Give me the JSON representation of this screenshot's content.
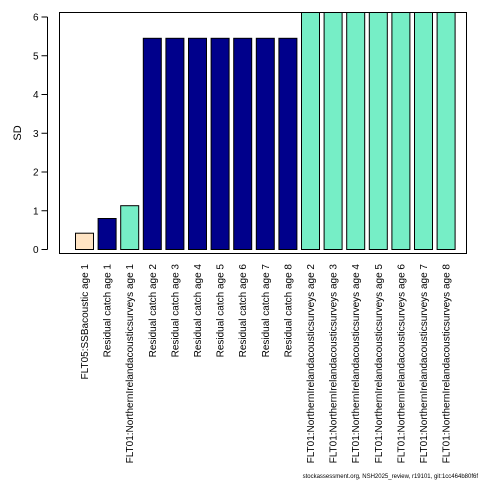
{
  "chart_data": {
    "type": "bar",
    "title": "",
    "xlabel": "",
    "ylabel": "SD",
    "ylim": [
      0,
      6.2
    ],
    "yticks": [
      0,
      1,
      2,
      3,
      4,
      5,
      6
    ],
    "grid": false,
    "categories": [
      "FLT05:SSBacoustic age 1",
      "Residual catch age 1",
      "FLT01:NorthernIrelandacousticsurveys age 1",
      "Residual catch age 2",
      "Residual catch age 3",
      "Residual catch age 4",
      "Residual catch age 5",
      "Residual catch age 6",
      "Residual catch age 7",
      "Residual catch age 8",
      "FLT01:NorthernIrelandacousticsurveys age 2",
      "FLT01:NorthernIrelandacousticsurveys age 3",
      "FLT01:NorthernIrelandacousticsurveys age 4",
      "FLT01:NorthernIrelandacousticsurveys age 5",
      "FLT01:NorthernIrelandacousticsurveys age 6",
      "FLT01:NorthernIrelandacousticsurveys age 7",
      "FLT01:NorthernIrelandacousticsurveys age 8"
    ],
    "values": [
      0.42,
      0.8,
      1.13,
      5.45,
      5.45,
      5.45,
      5.45,
      5.45,
      5.45,
      5.45,
      6.22,
      6.22,
      6.22,
      6.22,
      6.22,
      6.22,
      6.22
    ],
    "bar_colors": [
      "#FFE4C4",
      "#00008B",
      "#76EEC6",
      "#00008B",
      "#00008B",
      "#00008B",
      "#00008B",
      "#00008B",
      "#00008B",
      "#00008B",
      "#76EEC6",
      "#76EEC6",
      "#76EEC6",
      "#76EEC6",
      "#76EEC6",
      "#76EEC6",
      "#76EEC6"
    ]
  },
  "footer": "stockassessment.org, NSH2025_review, r19101, git:1cc464b80f6f"
}
